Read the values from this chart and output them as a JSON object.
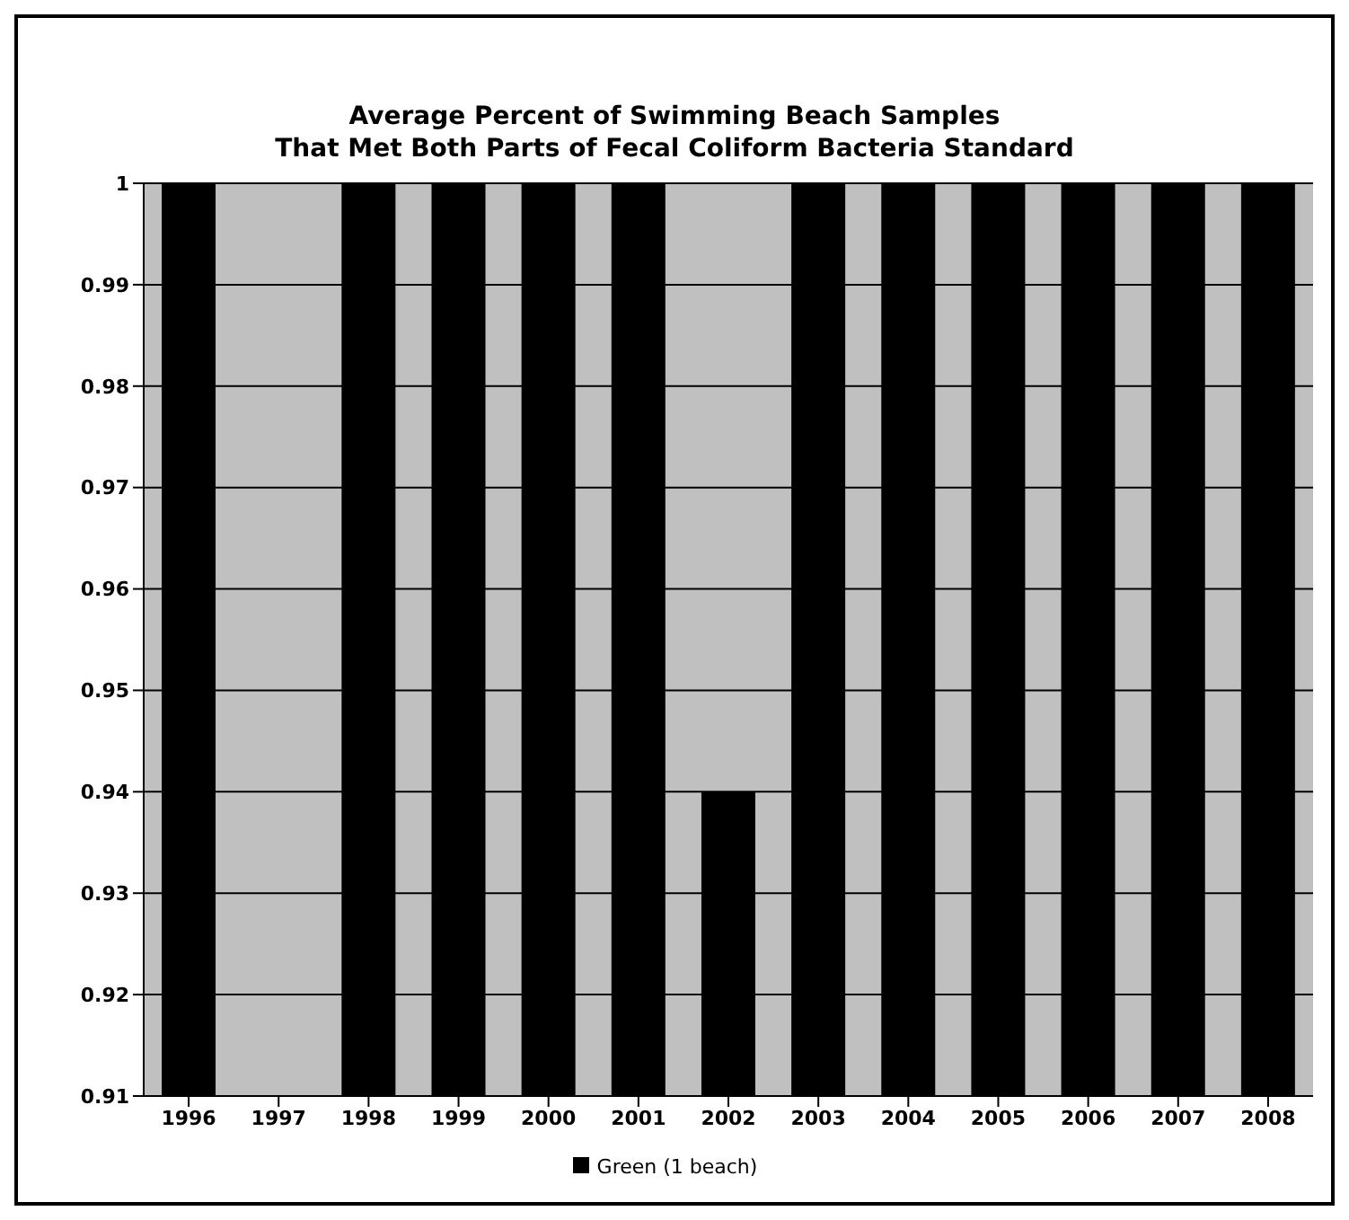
{
  "chart_data": {
    "type": "bar",
    "title": "Average Percent of Swimming Beach Samples\nThat Met Both Parts of Fecal Coliform Bacteria Standard",
    "categories": [
      "1996",
      "1997",
      "1998",
      "1999",
      "2000",
      "2001",
      "2002",
      "2003",
      "2004",
      "2005",
      "2006",
      "2007",
      "2008"
    ],
    "series": [
      {
        "name": "Green (1 beach)",
        "color": "#000000",
        "values": [
          1,
          null,
          1,
          1,
          1,
          1,
          0.94,
          1,
          1,
          1,
          1,
          1,
          1
        ]
      }
    ],
    "ylim": [
      0.91,
      1
    ],
    "yticks": [
      0.91,
      0.92,
      0.93,
      0.94,
      0.95,
      0.96,
      0.97,
      0.98,
      0.99,
      1
    ],
    "grid": "y",
    "legend": "bottom"
  }
}
